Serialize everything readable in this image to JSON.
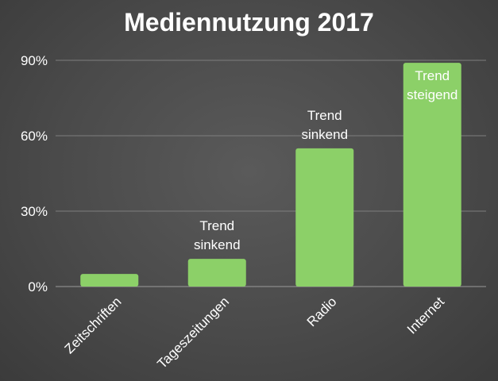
{
  "chart_data": {
    "type": "bar",
    "title": "Mediennutzung 2017",
    "xlabel": "",
    "ylabel": "",
    "categories": [
      "Zeitschriften",
      "Tageszeitungen",
      "Radio",
      "Internet"
    ],
    "values": [
      5,
      11,
      55,
      89
    ],
    "y_unit": "%",
    "ylim": [
      0,
      90
    ],
    "yticks": [
      0,
      30,
      60,
      90
    ],
    "ytick_labels": [
      "0%",
      "30%",
      "60%",
      "90%"
    ],
    "annotations": [
      {
        "category": "Tageszeitungen",
        "lines": [
          "Trend",
          "sinkend"
        ]
      },
      {
        "category": "Radio",
        "lines": [
          "Trend",
          "sinkend"
        ]
      },
      {
        "category": "Internet",
        "lines": [
          "Trend",
          "steigend"
        ]
      }
    ],
    "grid": true,
    "legend": "none",
    "colors": {
      "bar": "#8cd068",
      "background": "#4a4a4a",
      "text": "#ffffff",
      "grid": "#7e7e7e"
    }
  }
}
